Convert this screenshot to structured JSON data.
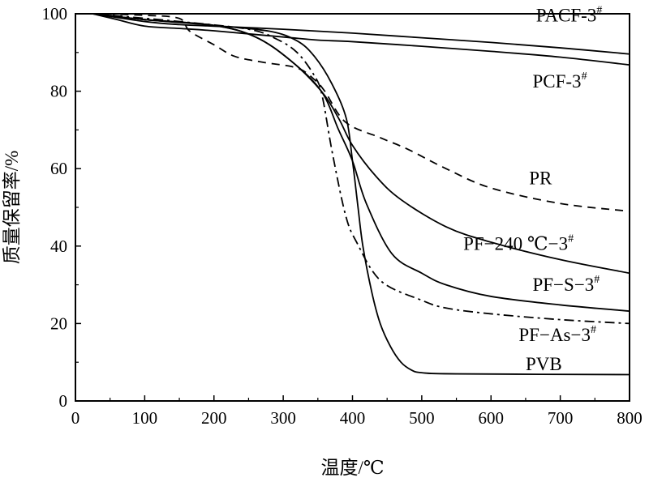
{
  "chart_data": {
    "type": "line",
    "title": "",
    "xlabel": "温度/℃",
    "ylabel": "质量保留率/%",
    "xlim": [
      0,
      800
    ],
    "ylim": [
      0,
      100
    ],
    "xticks": [
      0,
      100,
      200,
      300,
      400,
      500,
      600,
      700,
      800
    ],
    "yticks": [
      0,
      20,
      40,
      60,
      80,
      100
    ],
    "grid": false,
    "series": [
      {
        "name": "PACF-3",
        "sup": "#",
        "style": "solid",
        "x": [
          25,
          100,
          150,
          200,
          300,
          400,
          500,
          600,
          700,
          800
        ],
        "y": [
          100,
          98,
          97.2,
          96.8,
          96,
          95,
          93.8,
          92.6,
          91.2,
          89.6
        ]
      },
      {
        "name": "PCF-3",
        "sup": "#",
        "style": "solid",
        "x": [
          25,
          60,
          100,
          150,
          200,
          300,
          350,
          400,
          500,
          600,
          700,
          800
        ],
        "y": [
          100,
          98.5,
          96.8,
          96.2,
          95.6,
          94,
          93.2,
          92.8,
          91.6,
          90.3,
          88.8,
          86.8
        ]
      },
      {
        "name": "PR",
        "sup": "",
        "style": "dashed",
        "x": [
          25,
          100,
          150,
          165,
          200,
          230,
          270,
          320,
          345,
          360,
          390,
          440,
          480,
          535,
          600,
          700,
          800
        ],
        "y": [
          100,
          99.6,
          98.8,
          95.5,
          92,
          89,
          87.5,
          86,
          83,
          80,
          72,
          68,
          65,
          60,
          55,
          51,
          49
        ]
      },
      {
        "name": "PF−240 ℃−3",
        "sup": "#",
        "style": "solid",
        "x": [
          25,
          100,
          200,
          260,
          310,
          355,
          380,
          400,
          434,
          470,
          535,
          600,
          700,
          800
        ],
        "y": [
          100,
          98.5,
          97,
          94,
          88,
          80,
          73,
          66,
          58,
          52,
          45,
          41,
          36.5,
          33
        ]
      },
      {
        "name": "PF−S−3",
        "sup": "#",
        "style": "solid",
        "x": [
          25,
          100,
          200,
          260,
          310,
          355,
          380,
          400,
          420,
          457,
          500,
          535,
          600,
          700,
          800
        ],
        "y": [
          100,
          98.5,
          97,
          94,
          88,
          80,
          70,
          62,
          51,
          38,
          33,
          30,
          27,
          24.8,
          23.2
        ]
      },
      {
        "name": "PF−As−3",
        "sup": "#",
        "style": "dashdot",
        "x": [
          25,
          150,
          250,
          290,
          320,
          345,
          356,
          371,
          390,
          406,
          441,
          500,
          535,
          600,
          700,
          800
        ],
        "y": [
          100,
          98,
          96,
          93.5,
          90,
          84,
          79,
          64,
          48,
          41,
          31,
          26,
          24,
          22.5,
          21,
          20
        ]
      },
      {
        "name": "PVB",
        "sup": "",
        "style": "solid",
        "x": [
          25,
          100,
          200,
          280,
          320,
          345,
          370,
          391,
          400,
          408,
          415,
          428,
          440,
          455,
          470,
          485,
          500,
          550,
          800
        ],
        "y": [
          100,
          98.5,
          97,
          95.5,
          93,
          89,
          82,
          73,
          62,
          50,
          40,
          28,
          20,
          14,
          10,
          8,
          7.3,
          7,
          6.8
        ]
      }
    ],
    "labels": [
      {
        "series": 0,
        "x": 665,
        "y": 98
      },
      {
        "series": 1,
        "x": 660,
        "y": 81
      },
      {
        "series": 2,
        "x": 655,
        "y": 56
      },
      {
        "series": 3,
        "x": 560,
        "y": 39
      },
      {
        "series": 4,
        "x": 660,
        "y": 28.5
      },
      {
        "series": 5,
        "x": 640,
        "y": 15.5
      },
      {
        "series": 6,
        "x": 650,
        "y": 8
      }
    ]
  }
}
